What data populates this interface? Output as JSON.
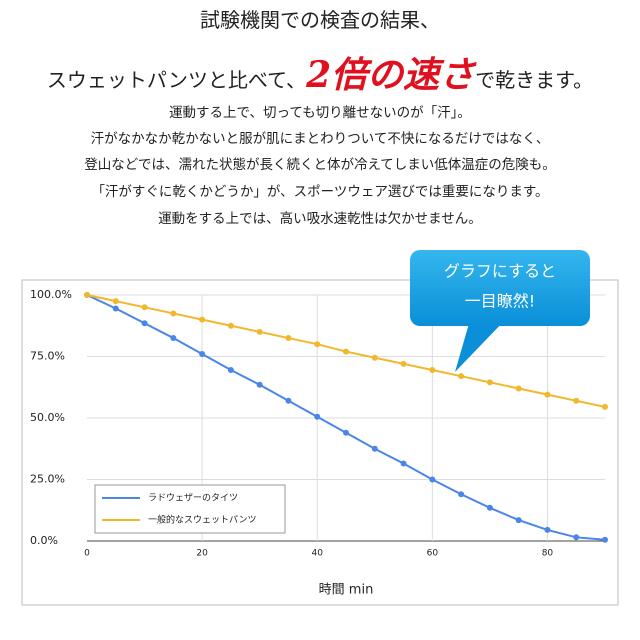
{
  "header": {
    "line1": "試験機関での検査の結果、",
    "line2_before": "スウェットパンツと比べて、",
    "emphasis": "2倍の速さ",
    "line2_after": "で乾きます。"
  },
  "paragraph": [
    "運動する上で、切っても切り離せないのが「汗」。",
    "汗がなかなか乾かないと服が肌にまとわりついて不快になるだけではなく、",
    "登山などでは、濡れた状態が長く続くと体が冷えてしまい低体温症の危険も。",
    "「汗がすぐに乾くかどうか」が、スポーツウェア選びでは重要になります。",
    "運動をする上では、高い吸水速乾性は欠かせません。"
  ],
  "callout": {
    "line1": "グラフにすると",
    "line2": "一目瞭然!"
  },
  "chart_data": {
    "type": "line",
    "x_label": "時間 min",
    "x": [
      0,
      5,
      10,
      15,
      20,
      25,
      30,
      35,
      40,
      45,
      50,
      55,
      60,
      65,
      70,
      75,
      80,
      85,
      90
    ],
    "series": [
      {
        "name": "ラドウェザーのタイツ",
        "color": "#4a86e8",
        "values": [
          100,
          94.5,
          88.5,
          82.5,
          76,
          69.5,
          63.5,
          57,
          50.5,
          44,
          37.5,
          31.5,
          25,
          19,
          13.5,
          8.5,
          4.5,
          1.5,
          0.5
        ]
      },
      {
        "name": "一般的なスウェットパンツ",
        "color": "#f1b82d",
        "values": [
          100,
          97.5,
          95,
          92.5,
          90,
          87.5,
          85,
          82.5,
          80,
          77,
          74.5,
          72,
          69.5,
          67,
          64.5,
          62,
          59.5,
          57,
          54.5
        ]
      }
    ],
    "xlim": [
      0,
      90
    ],
    "xticks": [
      0,
      20,
      40,
      60,
      80
    ],
    "ylim": [
      0,
      100
    ],
    "yticks": [
      {
        "value": 0,
        "label": "0.0%"
      },
      {
        "value": 25,
        "label": "25.0%"
      },
      {
        "value": 50,
        "label": "50.0%"
      },
      {
        "value": 75,
        "label": "75.0%"
      },
      {
        "value": 100,
        "label": "100.0%"
      }
    ],
    "grid": true
  }
}
